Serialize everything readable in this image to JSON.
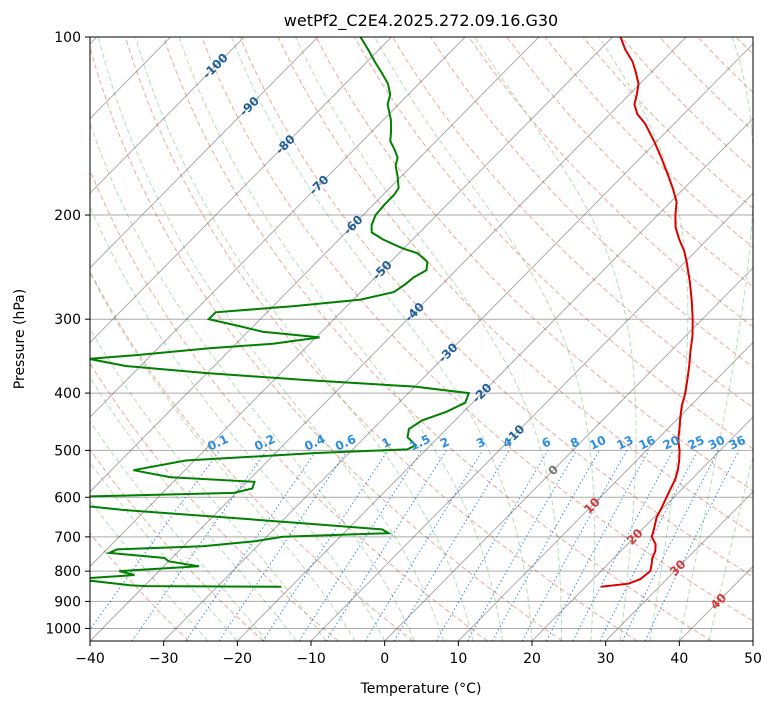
{
  "chart_data": {
    "type": "line",
    "title": "wetPf2_C2E4.2025.272.09.16.G30",
    "xlabel": "Temperature (°C)",
    "ylabel": "Pressure (hPa)",
    "xlim": [
      -40,
      50
    ],
    "ylim": [
      1050,
      100
    ],
    "y_scale": "log",
    "grid": true,
    "x_ticks": [
      -40,
      -30,
      -20,
      -10,
      0,
      10,
      20,
      30,
      40,
      50
    ],
    "y_ticks": [
      100,
      200,
      300,
      400,
      500,
      600,
      700,
      800,
      900,
      1000
    ],
    "isotherm_labels": [
      -100,
      -90,
      -80,
      -70,
      -60,
      -50,
      -40,
      -30,
      -20,
      -10,
      0,
      10,
      20,
      30,
      40
    ],
    "mixing_ratio_labels": [
      0.1,
      0.2,
      0.4,
      0.6,
      1,
      1.5,
      2,
      3,
      4,
      6,
      8,
      10,
      13,
      16,
      20,
      25,
      30,
      36
    ],
    "series": [
      {
        "color": "#dd0000",
        "points": [
          [
            850,
            22.1
          ],
          [
            840,
            25.4
          ],
          [
            825,
            26.4
          ],
          [
            800,
            26.7
          ],
          [
            780,
            26.0
          ],
          [
            760,
            25.2
          ],
          [
            740,
            24.7
          ],
          [
            720,
            23.8
          ],
          [
            700,
            22.3
          ],
          [
            680,
            21.6
          ],
          [
            650,
            20.4
          ],
          [
            620,
            19.6
          ],
          [
            600,
            19.0
          ],
          [
            580,
            18.4
          ],
          [
            560,
            17.8
          ],
          [
            540,
            16.9
          ],
          [
            520,
            15.8
          ],
          [
            500,
            14.5
          ],
          [
            480,
            12.9
          ],
          [
            460,
            11.6
          ],
          [
            440,
            10.2
          ],
          [
            420,
            8.8
          ],
          [
            400,
            7.6
          ],
          [
            380,
            6.1
          ],
          [
            360,
            4.5
          ],
          [
            340,
            2.7
          ],
          [
            320,
            0.9
          ],
          [
            300,
            -1.3
          ],
          [
            280,
            -3.8
          ],
          [
            260,
            -6.6
          ],
          [
            240,
            -9.8
          ],
          [
            230,
            -11.6
          ],
          [
            220,
            -13.8
          ],
          [
            210,
            -15.9
          ],
          [
            200,
            -17.6
          ],
          [
            190,
            -19.2
          ],
          [
            180,
            -21.6
          ],
          [
            170,
            -24.3
          ],
          [
            160,
            -27.2
          ],
          [
            150,
            -30.4
          ],
          [
            140,
            -34.0
          ],
          [
            135,
            -36.3
          ],
          [
            130,
            -38.0
          ],
          [
            125,
            -39.0
          ],
          [
            120,
            -40.2
          ],
          [
            115,
            -42.0
          ],
          [
            110,
            -44.0
          ],
          [
            105,
            -46.6
          ],
          [
            100,
            -48.9
          ]
        ]
      },
      {
        "color": "#008000",
        "points": [
          [
            850,
            -21.3
          ],
          [
            848,
            -39.7
          ],
          [
            845,
            -42.1
          ],
          [
            830,
            -48.2
          ],
          [
            822,
            -48.5
          ],
          [
            812,
            -42.8
          ],
          [
            800,
            -45.4
          ],
          [
            785,
            -35.2
          ],
          [
            770,
            -40.0
          ],
          [
            760,
            -41.0
          ],
          [
            745,
            -49.2
          ],
          [
            735,
            -48.6
          ],
          [
            726,
            -37.4
          ],
          [
            712,
            -31.0
          ],
          [
            700,
            -27.8
          ],
          [
            690,
            -13.9
          ],
          [
            680,
            -15.3
          ],
          [
            665,
            -26.0
          ],
          [
            650,
            -37.5
          ],
          [
            630,
            -53.3
          ],
          [
            622,
            -58.0
          ],
          [
            600,
            -64.5
          ],
          [
            590,
            -40.3
          ],
          [
            580,
            -38.4
          ],
          [
            565,
            -39.0
          ],
          [
            555,
            -51.0
          ],
          [
            540,
            -57.0
          ],
          [
            520,
            -51.2
          ],
          [
            505,
            -34.5
          ],
          [
            498,
            -22.6
          ],
          [
            490,
            -22.0
          ],
          [
            475,
            -24.2
          ],
          [
            460,
            -25.1
          ],
          [
            445,
            -24.5
          ],
          [
            430,
            -22.3
          ],
          [
            415,
            -21.0
          ],
          [
            400,
            -21.8
          ],
          [
            390,
            -30.0
          ],
          [
            380,
            -46.0
          ],
          [
            370,
            -60.0
          ],
          [
            360,
            -72.0
          ],
          [
            350,
            -78.0
          ],
          [
            345,
            -72.0
          ],
          [
            336,
            -63.0
          ],
          [
            330,
            -55.0
          ],
          [
            322,
            -49.5
          ],
          [
            315,
            -58.0
          ],
          [
            308,
            -62.0
          ],
          [
            300,
            -67.0
          ],
          [
            292,
            -67.0
          ],
          [
            285,
            -57.0
          ],
          [
            278,
            -49.0
          ],
          [
            270,
            -45.5
          ],
          [
            262,
            -45.0
          ],
          [
            255,
            -44.8
          ],
          [
            248,
            -44.0
          ],
          [
            240,
            -45.0
          ],
          [
            232,
            -47.5
          ],
          [
            228,
            -50.0
          ],
          [
            224,
            -52.0
          ],
          [
            220,
            -54.0
          ],
          [
            214,
            -56.5
          ],
          [
            208,
            -57.5
          ],
          [
            200,
            -58.3
          ],
          [
            192,
            -58.5
          ],
          [
            185,
            -58.5
          ],
          [
            180,
            -58.8
          ],
          [
            172,
            -60.5
          ],
          [
            165,
            -62.2
          ],
          [
            160,
            -63.0
          ],
          [
            155,
            -64.5
          ],
          [
            150,
            -66.2
          ],
          [
            144,
            -67.5
          ],
          [
            138,
            -69.0
          ],
          [
            130,
            -71.5
          ],
          [
            125,
            -72.5
          ],
          [
            120,
            -74.2
          ],
          [
            115,
            -76.5
          ],
          [
            110,
            -79.0
          ],
          [
            105,
            -81.5
          ],
          [
            100,
            -84.2
          ]
        ]
      }
    ]
  }
}
